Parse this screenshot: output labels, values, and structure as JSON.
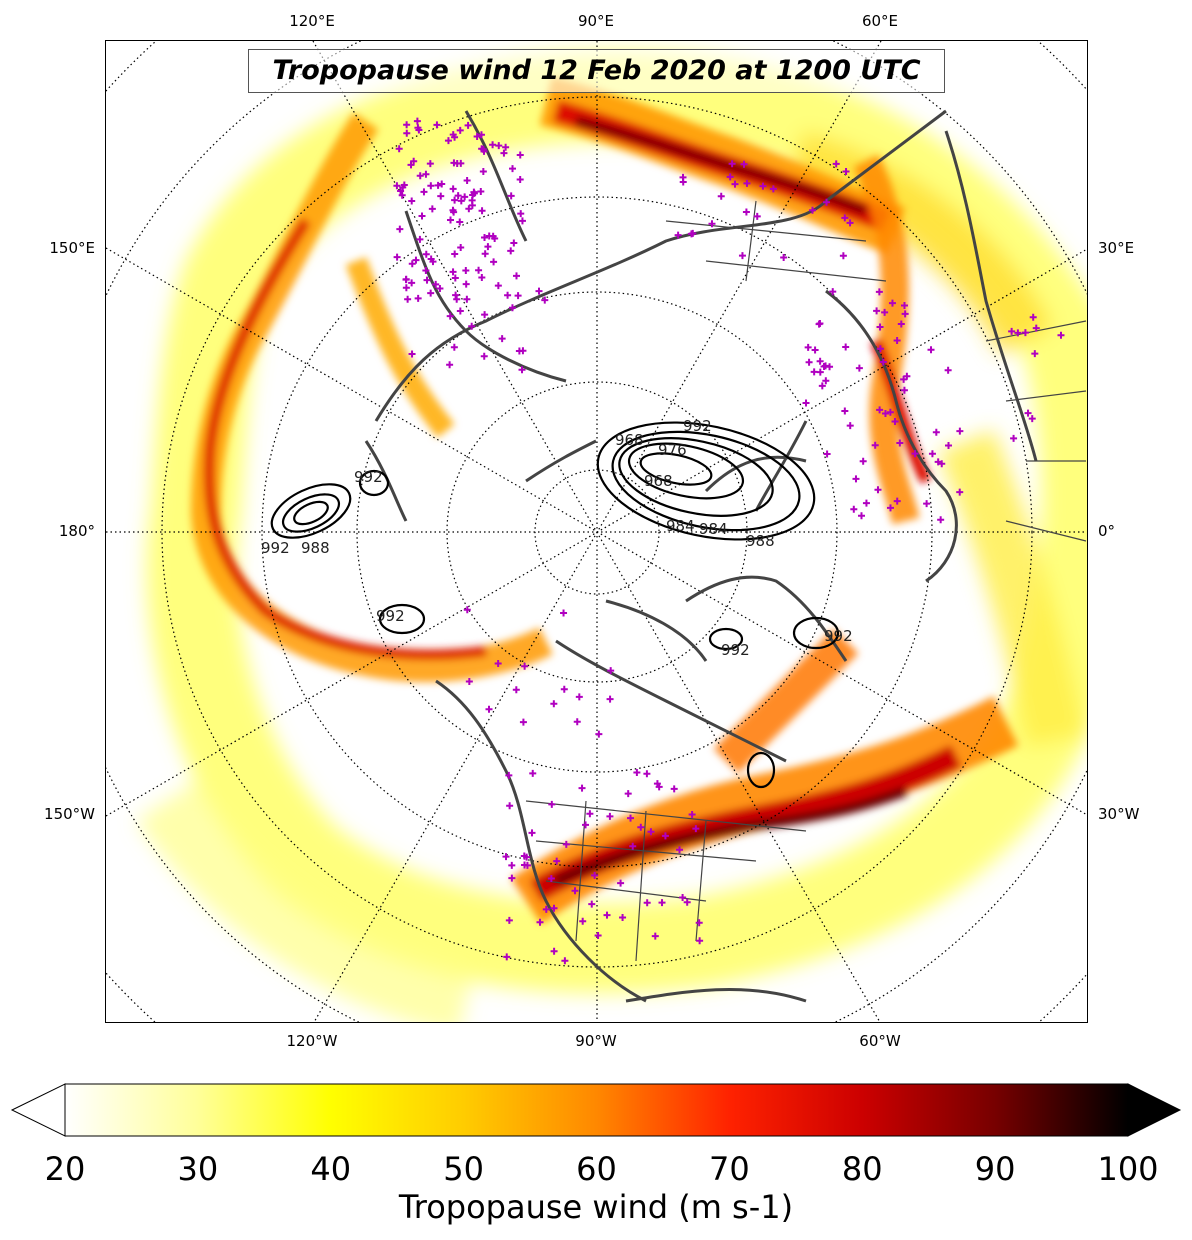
{
  "title": "Tropopause wind 12 Feb 2020 at 1200 UTC",
  "map": {
    "projection": "north-polar-stereographic",
    "coastline_color": "#444444",
    "station_marker_color": "#b000c0",
    "contour_color": "#000000",
    "top_ticks": [
      "120°E",
      "90°E",
      "60°E"
    ],
    "bottom_ticks": [
      "120°W",
      "90°W",
      "60°W"
    ],
    "left_ticks": [
      "150°E",
      "180°",
      "150°W"
    ],
    "right_ticks": [
      "30°E",
      "0°",
      "30°W"
    ],
    "contour_labels": [
      "992",
      "968",
      "976",
      "968",
      "984",
      "988",
      "984",
      "992",
      "988",
      "992",
      "992",
      "992",
      "992"
    ]
  },
  "colorbar": {
    "title": "Tropopause wind (m s-1)",
    "min": 20,
    "max": 100,
    "ticks": [
      "20",
      "30",
      "40",
      "50",
      "60",
      "70",
      "80",
      "90",
      "100"
    ],
    "colormap": [
      "#ffffff",
      "#ffff99",
      "#ffff00",
      "#ffcc00",
      "#ff8800",
      "#ff2200",
      "#cc0000",
      "#770000",
      "#000000"
    ],
    "extend": "both"
  }
}
